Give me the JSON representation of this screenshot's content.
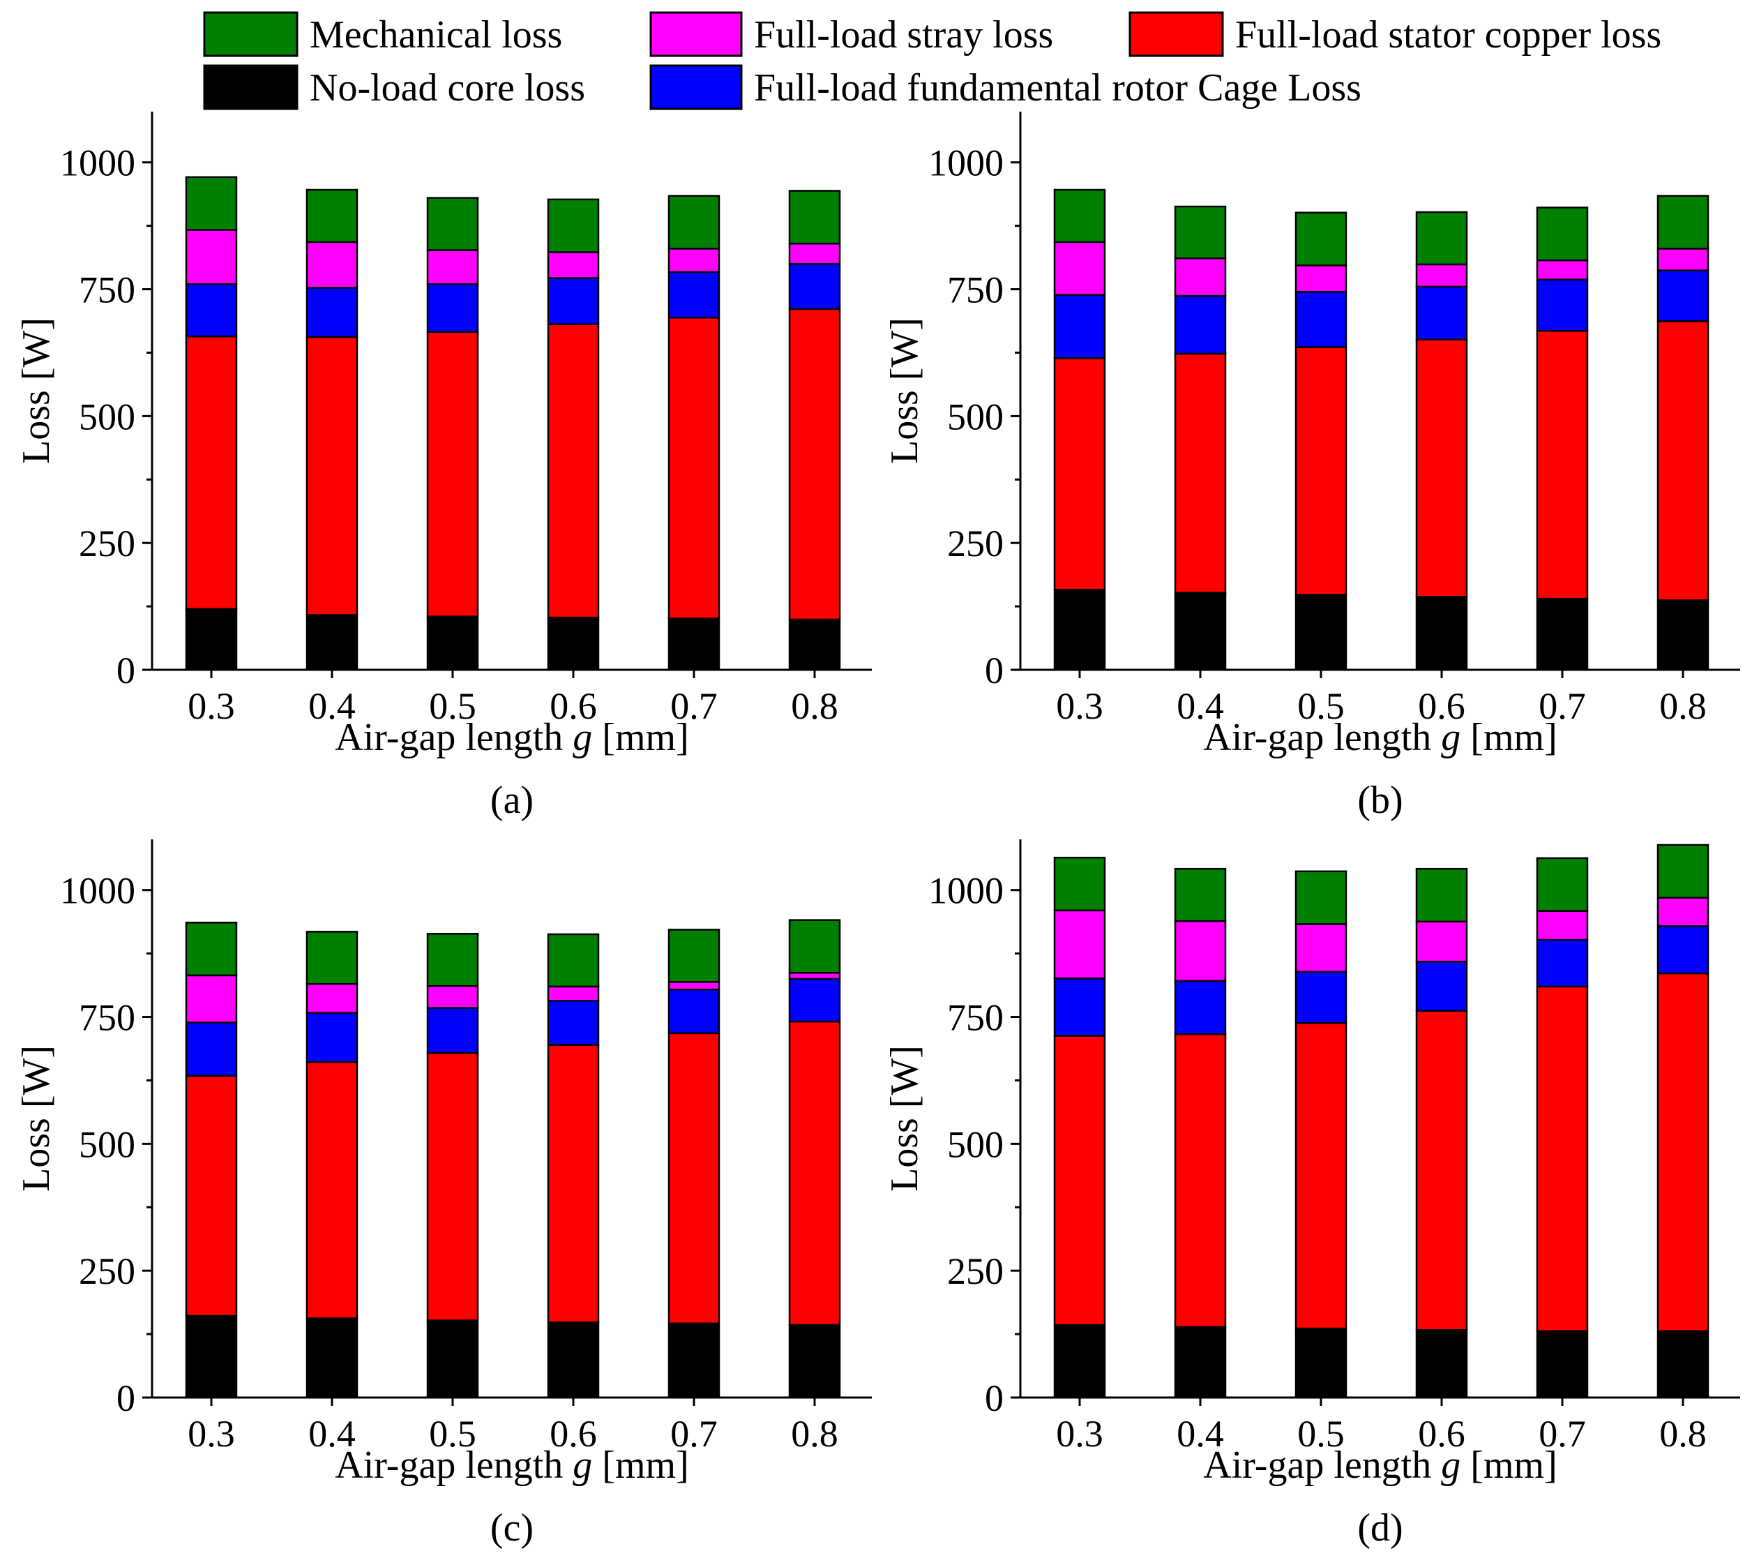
{
  "legend": [
    {
      "key": "mech",
      "label": "Mechanical loss",
      "color": "#008000"
    },
    {
      "key": "stray",
      "label": "Full-load stray loss",
      "color": "#ff00ff"
    },
    {
      "key": "stator",
      "label": "Full-load stator copper loss",
      "color": "#ff0000"
    },
    {
      "key": "core",
      "label": "No-load core loss",
      "color": "#000000"
    },
    {
      "key": "rotor",
      "label": "Full-load fundamental rotor Cage Loss",
      "color": "#0000ff"
    }
  ],
  "stack_order": [
    "core",
    "stator",
    "rotor",
    "stray",
    "mech"
  ],
  "chart_data": [
    {
      "type": "bar",
      "stacked": true,
      "panel": "(a)",
      "xlabel_prefix": "Air-gap length ",
      "xlabel_var": "g",
      "xlabel_suffix": " [mm]",
      "ylabel": "Loss [W]",
      "ylim": [
        0,
        1100
      ],
      "yticks": [
        0,
        250,
        500,
        750,
        1000
      ],
      "categories": [
        "0.3",
        "0.4",
        "0.5",
        "0.6",
        "0.7",
        "0.8"
      ],
      "series": [
        {
          "key": "core",
          "name": "No-load core loss",
          "values": [
            120,
            108,
            105,
            103,
            101,
            99
          ]
        },
        {
          "key": "stator",
          "name": "Full-load stator copper loss",
          "values": [
            537,
            548,
            561,
            578,
            593,
            612
          ]
        },
        {
          "key": "rotor",
          "name": "Full-load fundamental rotor Cage Loss",
          "values": [
            103,
            97,
            94,
            91,
            90,
            89
          ]
        },
        {
          "key": "stray",
          "name": "Full-load stray loss",
          "values": [
            107,
            90,
            67,
            51,
            46,
            40
          ]
        },
        {
          "key": "mech",
          "name": "Mechanical loss",
          "values": [
            104,
            103,
            103,
            104,
            104,
            104
          ]
        }
      ]
    },
    {
      "type": "bar",
      "stacked": true,
      "panel": "(b)",
      "xlabel_prefix": "Air-gap length ",
      "xlabel_var": "g",
      "xlabel_suffix": " [mm]",
      "ylabel": "Loss [W]",
      "ylim": [
        0,
        1100
      ],
      "yticks": [
        0,
        250,
        500,
        750,
        1000
      ],
      "categories": [
        "0.3",
        "0.4",
        "0.5",
        "0.6",
        "0.7",
        "0.8"
      ],
      "series": [
        {
          "key": "core",
          "name": "No-load core loss",
          "values": [
            158,
            152,
            148,
            144,
            140,
            137
          ]
        },
        {
          "key": "stator",
          "name": "Full-load stator copper loss",
          "values": [
            456,
            471,
            488,
            507,
            528,
            550
          ]
        },
        {
          "key": "rotor",
          "name": "Full-load fundamental rotor Cage Loss",
          "values": [
            125,
            114,
            109,
            104,
            101,
            100
          ]
        },
        {
          "key": "stray",
          "name": "Full-load stray loss",
          "values": [
            104,
            74,
            52,
            44,
            38,
            43
          ]
        },
        {
          "key": "mech",
          "name": "Mechanical loss",
          "values": [
            103,
            102,
            104,
            103,
            104,
            104
          ]
        }
      ]
    },
    {
      "type": "bar",
      "stacked": true,
      "panel": "(c)",
      "xlabel_prefix": "Air-gap length ",
      "xlabel_var": "g",
      "xlabel_suffix": " [mm]",
      "ylabel": "Loss [W]",
      "ylim": [
        0,
        1100
      ],
      "yticks": [
        0,
        250,
        500,
        750,
        1000
      ],
      "categories": [
        "0.3",
        "0.4",
        "0.5",
        "0.6",
        "0.7",
        "0.8"
      ],
      "series": [
        {
          "key": "core",
          "name": "No-load core loss",
          "values": [
            161,
            156,
            152,
            148,
            146,
            143
          ]
        },
        {
          "key": "stator",
          "name": "Full-load stator copper loss",
          "values": [
            473,
            505,
            527,
            547,
            572,
            598
          ]
        },
        {
          "key": "rotor",
          "name": "Full-load fundamental rotor Cage Loss",
          "values": [
            105,
            97,
            89,
            87,
            86,
            84
          ]
        },
        {
          "key": "stray",
          "name": "Full-load stray loss",
          "values": [
            93,
            57,
            43,
            28,
            15,
            12
          ]
        },
        {
          "key": "mech",
          "name": "Mechanical loss",
          "values": [
            104,
            103,
            103,
            103,
            103,
            104
          ]
        }
      ]
    },
    {
      "type": "bar",
      "stacked": true,
      "panel": "(d)",
      "xlabel_prefix": "Air-gap length ",
      "xlabel_var": "g",
      "xlabel_suffix": " [mm]",
      "ylabel": "Loss [W]",
      "ylim": [
        0,
        1100
      ],
      "yticks": [
        0,
        250,
        500,
        750,
        1000
      ],
      "categories": [
        "0.3",
        "0.4",
        "0.5",
        "0.6",
        "0.7",
        "0.8"
      ],
      "series": [
        {
          "key": "core",
          "name": "No-load core loss",
          "values": [
            143,
            139,
            136,
            133,
            131,
            131
          ]
        },
        {
          "key": "stator",
          "name": "Full-load stator copper loss",
          "values": [
            570,
            577,
            602,
            629,
            679,
            705
          ]
        },
        {
          "key": "rotor",
          "name": "Full-load fundamental rotor Cage Loss",
          "values": [
            113,
            105,
            101,
            97,
            92,
            93
          ]
        },
        {
          "key": "stray",
          "name": "Full-load stray loss",
          "values": [
            134,
            118,
            94,
            79,
            57,
            56
          ]
        },
        {
          "key": "mech",
          "name": "Mechanical loss",
          "values": [
            104,
            103,
            104,
            104,
            104,
            104
          ]
        }
      ]
    }
  ]
}
